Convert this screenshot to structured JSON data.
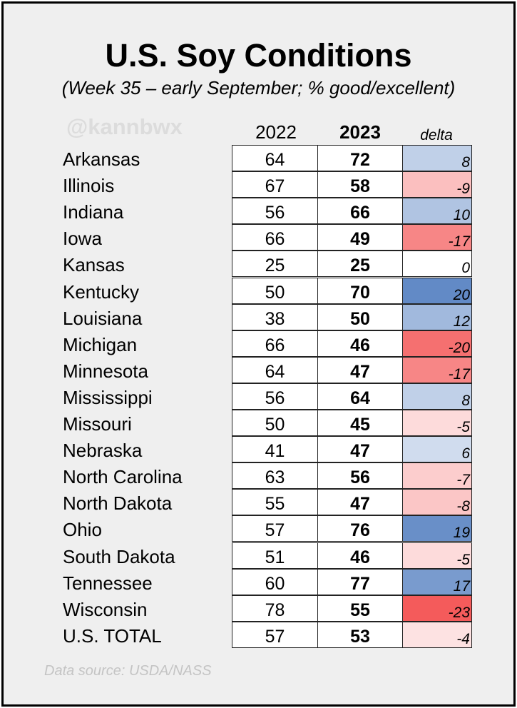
{
  "title": "U.S. Soy Conditions",
  "subtitle": "(Week 35 – early September; % good/excellent)",
  "watermark": "@kannbwx",
  "source": "Data source: USDA/NASS",
  "colors": {
    "positive": "#4a78bd",
    "negative": "#f45b5b",
    "neutral": "#ffffff",
    "background": "#efefef"
  },
  "chart_data": {
    "type": "table",
    "columns": [
      "2022",
      "2023",
      "delta"
    ],
    "rows": [
      {
        "state": "Arkansas",
        "y2022": 64,
        "y2023": 72,
        "delta": 8
      },
      {
        "state": "Illinois",
        "y2022": 67,
        "y2023": 58,
        "delta": -9
      },
      {
        "state": "Indiana",
        "y2022": 56,
        "y2023": 66,
        "delta": 10
      },
      {
        "state": "Iowa",
        "y2022": 66,
        "y2023": 49,
        "delta": -17
      },
      {
        "state": "Kansas",
        "y2022": 25,
        "y2023": 25,
        "delta": 0
      },
      {
        "state": "Kentucky",
        "y2022": 50,
        "y2023": 70,
        "delta": 20
      },
      {
        "state": "Louisiana",
        "y2022": 38,
        "y2023": 50,
        "delta": 12
      },
      {
        "state": "Michigan",
        "y2022": 66,
        "y2023": 46,
        "delta": -20
      },
      {
        "state": "Minnesota",
        "y2022": 64,
        "y2023": 47,
        "delta": -17
      },
      {
        "state": "Mississippi",
        "y2022": 56,
        "y2023": 64,
        "delta": 8
      },
      {
        "state": "Missouri",
        "y2022": 50,
        "y2023": 45,
        "delta": -5
      },
      {
        "state": "Nebraska",
        "y2022": 41,
        "y2023": 47,
        "delta": 6
      },
      {
        "state": "North Carolina",
        "y2022": 63,
        "y2023": 56,
        "delta": -7
      },
      {
        "state": "North Dakota",
        "y2022": 55,
        "y2023": 47,
        "delta": -8
      },
      {
        "state": "Ohio",
        "y2022": 57,
        "y2023": 76,
        "delta": 19
      },
      {
        "state": "South Dakota",
        "y2022": 51,
        "y2023": 46,
        "delta": -5
      },
      {
        "state": "Tennessee",
        "y2022": 60,
        "y2023": 77,
        "delta": 17
      },
      {
        "state": "Wisconsin",
        "y2022": 78,
        "y2023": 55,
        "delta": -23
      },
      {
        "state": "U.S. TOTAL",
        "y2022": 57,
        "y2023": 53,
        "delta": -4
      }
    ]
  }
}
